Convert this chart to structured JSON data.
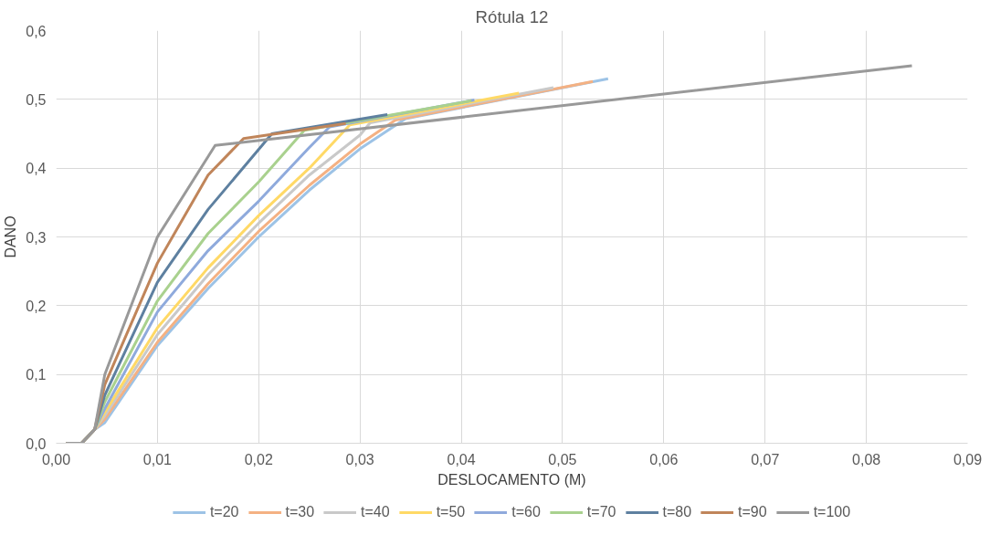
{
  "chart_data": {
    "type": "line",
    "title": "Rótula 12",
    "xlabel": "DESLOCAMENTO (M)",
    "ylabel": "DANO",
    "xlim": [
      0,
      0.09
    ],
    "ylim": [
      0,
      0.6
    ],
    "xticks": [
      {
        "value": 0,
        "label": "0,00"
      },
      {
        "value": 0.01,
        "label": "0,01"
      },
      {
        "value": 0.02,
        "label": "0,02"
      },
      {
        "value": 0.03,
        "label": "0,03"
      },
      {
        "value": 0.04,
        "label": "0,04"
      },
      {
        "value": 0.05,
        "label": "0,05"
      },
      {
        "value": 0.06,
        "label": "0,06"
      },
      {
        "value": 0.07,
        "label": "0,07"
      },
      {
        "value": 0.08,
        "label": "0,08"
      },
      {
        "value": 0.09,
        "label": "0,09"
      }
    ],
    "yticks": [
      {
        "value": 0,
        "label": "0,0"
      },
      {
        "value": 0.1,
        "label": "0,1"
      },
      {
        "value": 0.2,
        "label": "0,2"
      },
      {
        "value": 0.3,
        "label": "0,3"
      },
      {
        "value": 0.4,
        "label": "0,4"
      },
      {
        "value": 0.5,
        "label": "0,5"
      },
      {
        "value": 0.6,
        "label": "0,6"
      }
    ],
    "grid": true,
    "legend": "bottom",
    "marker": "none",
    "line_style": "solid",
    "series": [
      {
        "name": "t=20",
        "color": "#9dc3e6",
        "x": [
          0.001,
          0.0025,
          0.0038,
          0.0048,
          0.01,
          0.015,
          0.02,
          0.025,
          0.03,
          0.0345,
          0.0545
        ],
        "values": [
          0,
          0,
          0.02,
          0.03,
          0.142,
          0.225,
          0.3,
          0.368,
          0.428,
          0.472,
          0.53
        ]
      },
      {
        "name": "t=30",
        "color": "#f4b183",
        "x": [
          0.001,
          0.0025,
          0.0038,
          0.0048,
          0.01,
          0.015,
          0.02,
          0.025,
          0.03,
          0.0335,
          0.053
        ],
        "values": [
          0,
          0,
          0.02,
          0.035,
          0.147,
          0.232,
          0.308,
          0.375,
          0.435,
          0.47,
          0.526
        ]
      },
      {
        "name": "t=40",
        "color": "#c9c9c9",
        "x": [
          0.001,
          0.0025,
          0.0038,
          0.0048,
          0.01,
          0.015,
          0.02,
          0.025,
          0.03,
          0.031,
          0.0491
        ],
        "values": [
          0,
          0,
          0.02,
          0.04,
          0.158,
          0.245,
          0.32,
          0.39,
          0.448,
          0.466,
          0.517
        ]
      },
      {
        "name": "t=50",
        "color": "#ffd966",
        "x": [
          0.001,
          0.0025,
          0.0038,
          0.0048,
          0.01,
          0.015,
          0.02,
          0.025,
          0.029,
          0.0457
        ],
        "values": [
          0,
          0,
          0.02,
          0.045,
          0.168,
          0.255,
          0.331,
          0.4,
          0.463,
          0.509
        ]
      },
      {
        "name": "t=60",
        "color": "#8faadc",
        "x": [
          0.001,
          0.0025,
          0.0038,
          0.0048,
          0.01,
          0.015,
          0.02,
          0.025,
          0.027,
          0.0413
        ],
        "values": [
          0,
          0,
          0.02,
          0.05,
          0.191,
          0.28,
          0.352,
          0.43,
          0.46,
          0.499
        ]
      },
      {
        "name": "t=70",
        "color": "#a9d18e",
        "x": [
          0.001,
          0.0025,
          0.0038,
          0.0048,
          0.01,
          0.015,
          0.02,
          0.0245,
          0.041
        ],
        "values": [
          0,
          0,
          0.02,
          0.06,
          0.207,
          0.305,
          0.38,
          0.455,
          0.498
        ]
      },
      {
        "name": "t=80",
        "color": "#5e80a0",
        "x": [
          0.001,
          0.0025,
          0.0038,
          0.0048,
          0.01,
          0.015,
          0.0213,
          0.0327
        ],
        "values": [
          0,
          0,
          0.02,
          0.07,
          0.234,
          0.34,
          0.45,
          0.478
        ]
      },
      {
        "name": "t=90",
        "color": "#c0855a",
        "x": [
          0.001,
          0.0025,
          0.0038,
          0.0048,
          0.01,
          0.015,
          0.0185,
          0.0286
        ],
        "values": [
          0,
          0,
          0.02,
          0.085,
          0.262,
          0.39,
          0.443,
          0.465
        ]
      },
      {
        "name": "t=100",
        "color": "#999999",
        "x": [
          0.001,
          0.0025,
          0.0038,
          0.0048,
          0.01,
          0.0157,
          0.0845
        ],
        "values": [
          0,
          0,
          0.02,
          0.1,
          0.3,
          0.433,
          0.549
        ]
      }
    ]
  }
}
